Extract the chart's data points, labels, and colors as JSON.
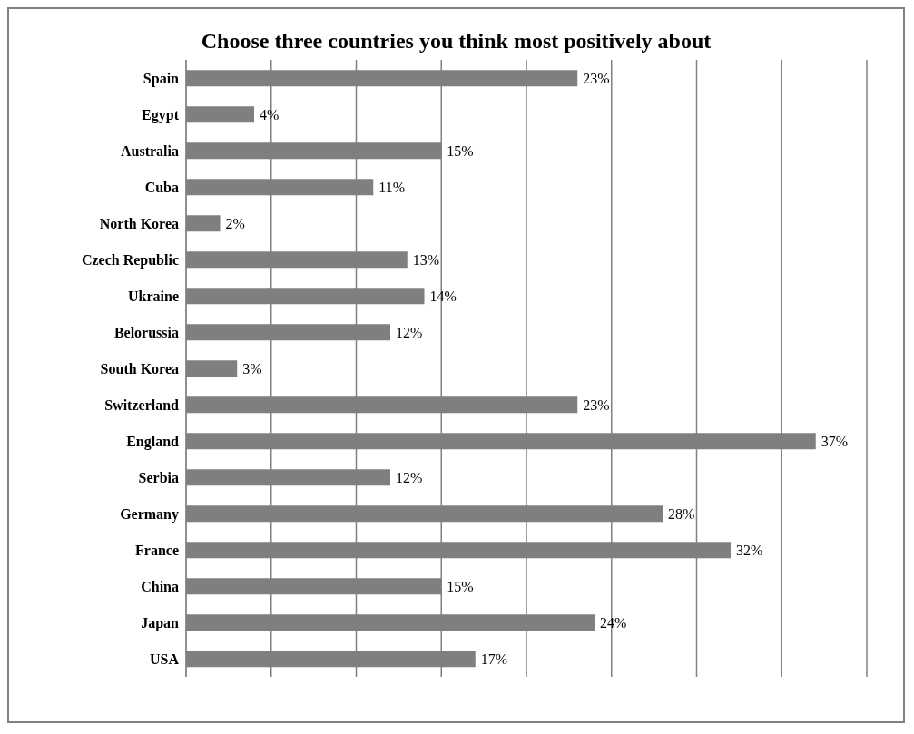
{
  "chart_data": {
    "type": "bar",
    "orientation": "horizontal",
    "title": "Choose three countries you think most positively about",
    "categories": [
      "Spain",
      "Egypt",
      "Australia",
      "Cuba",
      "North Korea",
      "Czech Republic",
      "Ukraine",
      "Belorussia",
      "South Korea",
      "Switzerland",
      "England",
      "Serbia",
      "Germany",
      "France",
      "China",
      "Japan",
      "USA"
    ],
    "values": [
      23,
      4,
      15,
      11,
      2,
      13,
      14,
      12,
      3,
      23,
      37,
      12,
      28,
      32,
      15,
      24,
      17
    ],
    "value_labels": [
      "23%",
      "4%",
      "15%",
      "11%",
      "2%",
      "13%",
      "14%",
      "12%",
      "3%",
      "23%",
      "37%",
      "12%",
      "28%",
      "32%",
      "15%",
      "24%",
      "17%"
    ],
    "color": "#7f7f7f",
    "xlim": [
      0,
      40
    ],
    "xticks": [
      {
        "value": 0,
        "label": null
      },
      {
        "value": 5,
        "label": null
      },
      {
        "value": 10,
        "label": null
      },
      {
        "value": 15,
        "label": null
      },
      {
        "value": 20,
        "label": null
      },
      {
        "value": 25,
        "label": null
      },
      {
        "value": 30,
        "label": null
      },
      {
        "value": 35,
        "label": null
      },
      {
        "value": 40,
        "label": null
      }
    ],
    "grid": "x",
    "tick_labels": "y",
    "legend": false
  }
}
